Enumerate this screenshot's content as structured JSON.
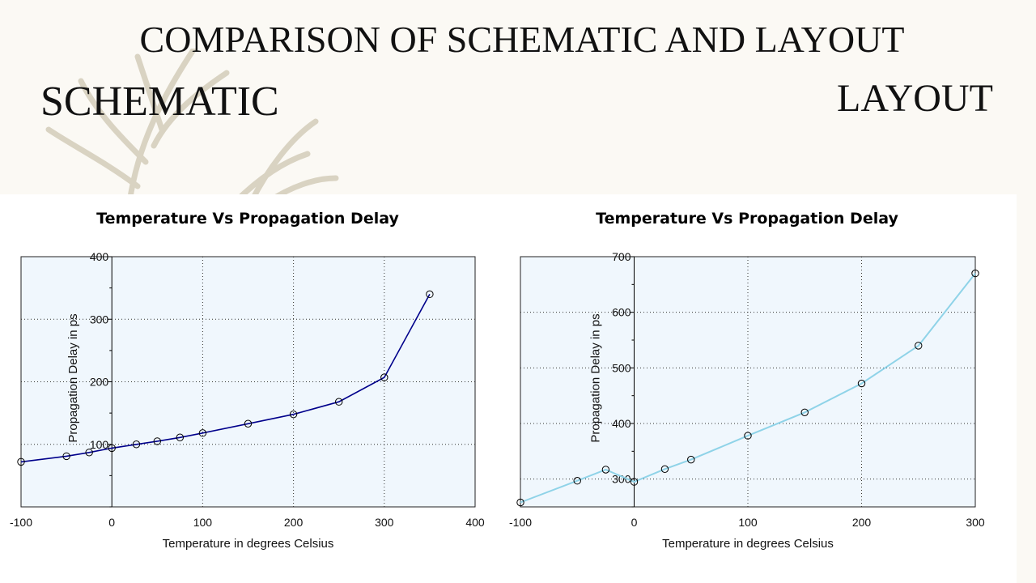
{
  "slide": {
    "title": "COMPARISON OF SCHEMATIC AND LAYOUT",
    "left_heading": "SCHEMATIC",
    "right_heading": "LAYOUT"
  },
  "colors": {
    "schematic_line": "#00008b",
    "layout_line": "#8fd3e8",
    "plot_bg": "#f0f7fd"
  },
  "chart_data": [
    {
      "type": "line",
      "title": "Temperature Vs Propagation Delay",
      "xlabel": "Temperature in degrees Celsius",
      "ylabel": "Propagation Delay in ps",
      "xlim": [
        -100,
        400
      ],
      "ylim": [
        0,
        400
      ],
      "x_ticks": [
        -100,
        0,
        100,
        200,
        300,
        400
      ],
      "y_ticks": [
        100,
        200,
        300,
        400
      ],
      "grid": true,
      "series": [
        {
          "x": [
            -100,
            -50,
            -25,
            0,
            27,
            50,
            75,
            100,
            150,
            200,
            250,
            300,
            350
          ],
          "values": [
            72,
            81,
            87,
            94,
            100,
            105,
            111,
            118,
            133,
            148,
            168,
            207,
            340
          ]
        }
      ]
    },
    {
      "type": "line",
      "title": "Temperature Vs Propagation Delay",
      "xlabel": "Temperature in degrees Celsius",
      "ylabel": "Propagation Delay in ps",
      "xlim": [
        -100,
        300
      ],
      "ylim": [
        250,
        700
      ],
      "x_ticks": [
        -100,
        0,
        100,
        200,
        300
      ],
      "y_ticks": [
        300,
        400,
        500,
        600,
        700
      ],
      "grid": true,
      "series": [
        {
          "x": [
            -100,
            -50,
            -25,
            0,
            27,
            50,
            100,
            150,
            200,
            250,
            300
          ],
          "values": [
            258,
            297,
            317,
            295,
            318,
            335,
            378,
            420,
            472,
            540,
            670
          ]
        }
      ]
    }
  ]
}
